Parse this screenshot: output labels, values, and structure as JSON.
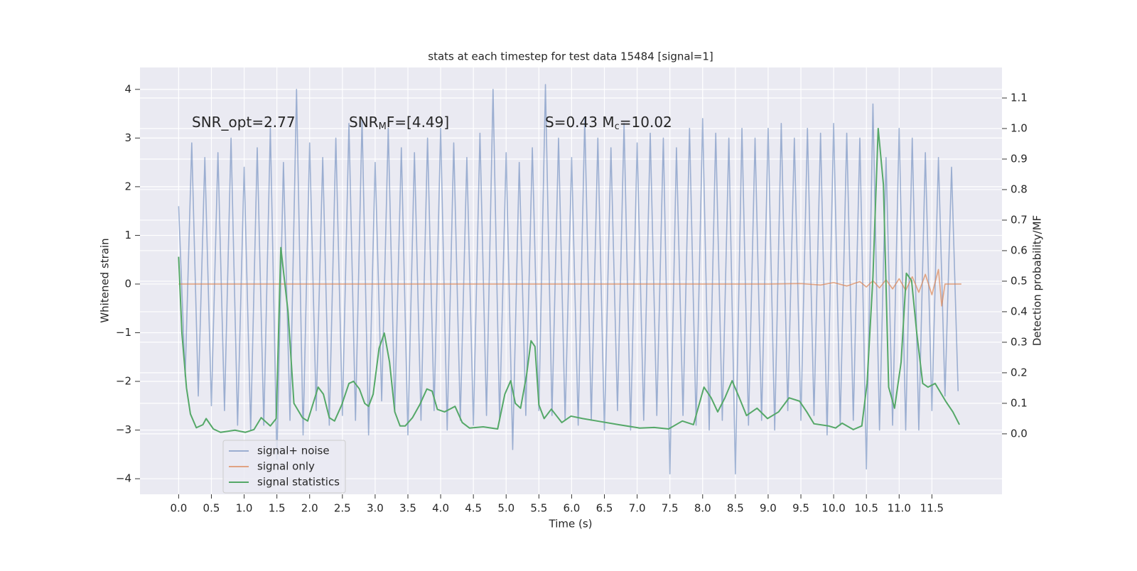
{
  "chart_data": {
    "type": "line",
    "title": "stats at each timestep for test data 15484 [signal=1]",
    "xlabel": "Time (s)",
    "ylabel": "Whitened strain",
    "y2label": "Detection probability/MF",
    "annotations": [
      {
        "parts": [
          "SNR_opt=2.77"
        ]
      },
      {
        "parts": [
          "SNR",
          "M",
          "F=[4.49]"
        ]
      },
      {
        "parts": [
          "S=0.43   M",
          "c",
          "=10.02"
        ]
      }
    ],
    "xlim": [
      -0.59,
      12.57
    ],
    "ylim": [
      -4.32,
      4.45
    ],
    "y2lim": [
      -0.198,
      1.2
    ],
    "xticks": [
      {
        "value": 0,
        "label": "0.0"
      },
      0.5,
      {
        "value": 1,
        "label": "1.0"
      },
      1.5,
      {
        "value": 2,
        "label": "2.0"
      },
      2.5,
      {
        "value": 3,
        "label": "3.0"
      },
      3.5,
      {
        "value": 4,
        "label": "4.0"
      },
      4.5,
      {
        "value": 5,
        "label": "5.0"
      },
      5.5,
      {
        "value": 6,
        "label": "6.0"
      },
      6.5,
      {
        "value": 7,
        "label": "7.0"
      },
      7.5,
      {
        "value": 8,
        "label": "8.0"
      },
      8.5,
      {
        "value": 9,
        "label": "9.0"
      },
      9.5,
      {
        "value": 10,
        "label": "10.0"
      },
      10.5,
      {
        "value": 11,
        "label": "11.0"
      },
      11.5
    ],
    "yticks": [
      {
        "value": -4,
        "label": "−4"
      },
      {
        "value": -3,
        "label": "−3"
      },
      {
        "value": -2,
        "label": "−2"
      },
      {
        "value": -1,
        "label": "−1"
      },
      0,
      1,
      2,
      3,
      4
    ],
    "y2ticks": [
      {
        "value": 0,
        "label": "0.0"
      },
      0.1,
      0.2,
      0.3,
      0.4,
      0.5,
      0.6,
      0.7,
      0.8,
      0.9,
      {
        "value": 1,
        "label": "1.0"
      },
      1.1
    ],
    "grid": true,
    "legend": "lower left",
    "series": [
      {
        "name": "signal+ noise",
        "color": "#4c72b0",
        "x": [
          0,
          0.1,
          0.2,
          0.3,
          0.4,
          0.5,
          0.6,
          0.7,
          0.8,
          0.9,
          1,
          1.1,
          1.2,
          1.3,
          1.4,
          1.5,
          1.6,
          1.7,
          1.8,
          1.9,
          2,
          2.1,
          2.2,
          2.3,
          2.4,
          2.5,
          2.6,
          2.7,
          2.8,
          2.9,
          3,
          3.1,
          3.2,
          3.3,
          3.4,
          3.5,
          3.6,
          3.7,
          3.8,
          3.9,
          4,
          4.1,
          4.2,
          4.3,
          4.4,
          4.5,
          4.6,
          4.7,
          4.8,
          4.9,
          5,
          5.1,
          5.2,
          5.3,
          5.4,
          5.5,
          5.6,
          5.7,
          5.8,
          5.9,
          6,
          6.1,
          6.2,
          6.3,
          6.4,
          6.5,
          6.6,
          6.7,
          6.8,
          6.9,
          7,
          7.1,
          7.2,
          7.3,
          7.4,
          7.5,
          7.6,
          7.7,
          7.8,
          7.9,
          8,
          8.1,
          8.2,
          8.3,
          8.4,
          8.5,
          8.6,
          8.7,
          8.8,
          8.9,
          9,
          9.1,
          9.2,
          9.3,
          9.4,
          9.5,
          9.6,
          9.7,
          9.8,
          9.9,
          10,
          10.1,
          10.2,
          10.3,
          10.4,
          10.5,
          10.6,
          10.7,
          10.8,
          10.9,
          11,
          11.1,
          11.2,
          11.3,
          11.4,
          11.5,
          11.6,
          11.7,
          11.8,
          11.9
        ],
        "values": [
          1.6,
          -1.9,
          2.9,
          -2.3,
          2.6,
          -2.5,
          2.7,
          -2.6,
          3.0,
          -2.9,
          2.4,
          -3.0,
          2.8,
          -2.9,
          3.2,
          -3.6,
          2.5,
          -2.8,
          4.0,
          -3.1,
          2.9,
          -2.6,
          2.6,
          -2.9,
          3.0,
          -2.7,
          3.3,
          -2.8,
          3.4,
          -3.1,
          2.5,
          -2.4,
          3.2,
          -2.6,
          2.8,
          -3.1,
          2.7,
          -2.8,
          3.0,
          -2.6,
          3.2,
          -3.0,
          2.9,
          -2.8,
          2.6,
          -2.9,
          3.1,
          -2.7,
          4.0,
          -2.8,
          2.7,
          -3.4,
          2.5,
          -2.7,
          2.8,
          -2.6,
          4.1,
          -2.7,
          3.0,
          -2.8,
          2.6,
          -2.9,
          3.4,
          -2.8,
          3.0,
          -3.0,
          2.8,
          -2.6,
          3.3,
          -3.0,
          2.9,
          -2.8,
          3.1,
          -2.7,
          3.0,
          -3.9,
          2.8,
          -2.7,
          3.2,
          -2.9,
          3.4,
          -3.0,
          3.1,
          -2.8,
          3.0,
          -3.9,
          3.2,
          -2.9,
          3.0,
          -2.8,
          3.2,
          -3.0,
          3.3,
          -2.6,
          3.0,
          -2.8,
          3.2,
          -2.7,
          3.1,
          -3.1,
          3.3,
          -2.9,
          3.1,
          -2.8,
          3.0,
          -3.8,
          3.7,
          -3.0,
          2.6,
          -2.9,
          3.2,
          -3.0,
          3.0,
          -3.0,
          2.7,
          -2.6,
          2.6,
          -2.3,
          2.4,
          -2.2
        ]
      },
      {
        "name": "signal only",
        "color": "#dd8452",
        "x": [
          0,
          9.0,
          9.5,
          9.8,
          10.0,
          10.2,
          10.4,
          10.5,
          10.6,
          10.7,
          10.8,
          10.9,
          11.0,
          11.1,
          11.2,
          11.3,
          11.4,
          11.5,
          11.6,
          11.65,
          11.7,
          11.95
        ],
        "values": [
          0,
          0,
          0.01,
          -0.02,
          0.03,
          -0.04,
          0.05,
          -0.06,
          0.07,
          -0.08,
          0.09,
          -0.1,
          0.11,
          -0.13,
          0.15,
          -0.17,
          0.2,
          -0.22,
          0.3,
          -0.45,
          0,
          0
        ]
      },
      {
        "name": "signal statistics",
        "color": "#55a868",
        "axis": "y2",
        "x": [
          0,
          0.05,
          0.12,
          0.18,
          0.27,
          0.37,
          0.42,
          0.53,
          0.64,
          0.86,
          1.02,
          1.15,
          1.26,
          1.4,
          1.49,
          1.56,
          1.67,
          1.76,
          1.89,
          1.97,
          2.13,
          2.21,
          2.3,
          2.38,
          2.49,
          2.6,
          2.67,
          2.76,
          2.84,
          2.9,
          2.97,
          3.06,
          3.14,
          3.22,
          3.3,
          3.38,
          3.46,
          3.57,
          3.68,
          3.79,
          3.87,
          3.95,
          4.06,
          4.22,
          4.33,
          4.44,
          4.65,
          4.87,
          4.98,
          5.07,
          5.14,
          5.22,
          5.31,
          5.38,
          5.44,
          5.5,
          5.58,
          5.69,
          5.85,
          5.99,
          6.17,
          6.39,
          6.72,
          7.04,
          7.26,
          7.48,
          7.69,
          7.86,
          8.02,
          8.13,
          8.23,
          8.34,
          8.45,
          8.56,
          8.67,
          8.83,
          8.99,
          9.16,
          9.32,
          9.48,
          9.59,
          9.7,
          9.92,
          10.03,
          10.13,
          10.3,
          10.43,
          10.51,
          10.6,
          10.68,
          10.76,
          10.84,
          10.93,
          11.03,
          11.11,
          11.19,
          11.27,
          11.36,
          11.44,
          11.55,
          11.71,
          11.82,
          11.92
        ],
        "values": [
          0.58,
          0.33,
          0.15,
          0.065,
          0.02,
          0.03,
          0.05,
          0.016,
          0.005,
          0.012,
          0.005,
          0.014,
          0.053,
          0.026,
          0.05,
          0.61,
          0.4,
          0.1,
          0.053,
          0.042,
          0.153,
          0.13,
          0.053,
          0.042,
          0.095,
          0.165,
          0.172,
          0.147,
          0.1,
          0.09,
          0.13,
          0.28,
          0.33,
          0.235,
          0.072,
          0.026,
          0.026,
          0.053,
          0.095,
          0.147,
          0.14,
          0.08,
          0.072,
          0.09,
          0.037,
          0.019,
          0.023,
          0.016,
          0.13,
          0.174,
          0.1,
          0.084,
          0.19,
          0.305,
          0.286,
          0.095,
          0.05,
          0.081,
          0.037,
          0.058,
          0.05,
          0.042,
          0.03,
          0.019,
          0.021,
          0.016,
          0.042,
          0.03,
          0.153,
          0.118,
          0.072,
          0.118,
          0.174,
          0.118,
          0.06,
          0.084,
          0.05,
          0.072,
          0.118,
          0.107,
          0.072,
          0.033,
          0.026,
          0.019,
          0.035,
          0.014,
          0.026,
          0.165,
          0.514,
          1.0,
          0.816,
          0.153,
          0.084,
          0.235,
          0.526,
          0.502,
          0.328,
          0.165,
          0.153,
          0.165,
          0.107,
          0.072,
          0.03
        ]
      }
    ]
  }
}
